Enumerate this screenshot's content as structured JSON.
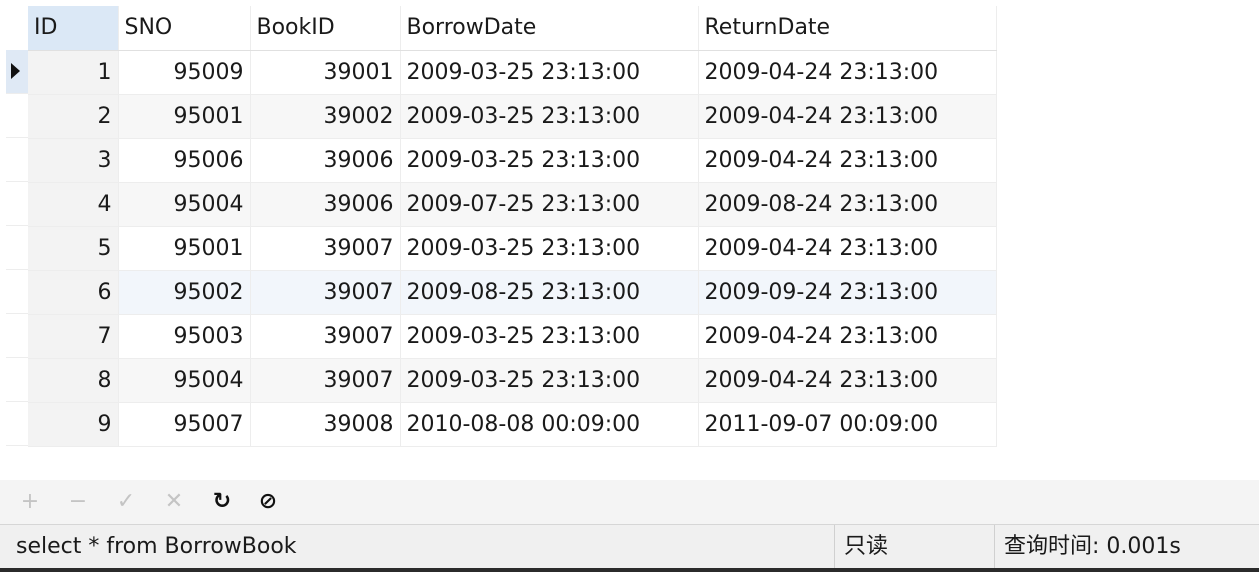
{
  "table": {
    "columns": [
      {
        "key": "id",
        "label": "ID"
      },
      {
        "key": "sno",
        "label": "SNO"
      },
      {
        "key": "bookid",
        "label": "BookID"
      },
      {
        "key": "borrow",
        "label": "BorrowDate"
      },
      {
        "key": "return",
        "label": "ReturnDate"
      }
    ],
    "rows": [
      {
        "id": "1",
        "sno": "95009",
        "bookid": "39001",
        "borrow": "2009-03-25 23:13:00",
        "return": "2009-04-24 23:13:00"
      },
      {
        "id": "2",
        "sno": "95001",
        "bookid": "39002",
        "borrow": "2009-03-25 23:13:00",
        "return": "2009-04-24 23:13:00"
      },
      {
        "id": "3",
        "sno": "95006",
        "bookid": "39006",
        "borrow": "2009-03-25 23:13:00",
        "return": "2009-04-24 23:13:00"
      },
      {
        "id": "4",
        "sno": "95004",
        "bookid": "39006",
        "borrow": "2009-07-25 23:13:00",
        "return": "2009-08-24 23:13:00"
      },
      {
        "id": "5",
        "sno": "95001",
        "bookid": "39007",
        "borrow": "2009-03-25 23:13:00",
        "return": "2009-04-24 23:13:00"
      },
      {
        "id": "6",
        "sno": "95002",
        "bookid": "39007",
        "borrow": "2009-08-25 23:13:00",
        "return": "2009-09-24 23:13:00"
      },
      {
        "id": "7",
        "sno": "95003",
        "bookid": "39007",
        "borrow": "2009-03-25 23:13:00",
        "return": "2009-04-24 23:13:00"
      },
      {
        "id": "8",
        "sno": "95004",
        "bookid": "39007",
        "borrow": "2009-03-25 23:13:00",
        "return": "2009-04-24 23:13:00"
      },
      {
        "id": "9",
        "sno": "95007",
        "bookid": "39008",
        "borrow": "2010-08-08 00:09:00",
        "return": "2011-09-07 00:09:00"
      }
    ]
  },
  "toolbar": {
    "buttons": [
      {
        "name": "add-record-button",
        "icon": "plus-icon",
        "glyph": "+",
        "enabled": false
      },
      {
        "name": "delete-record-button",
        "icon": "minus-icon",
        "glyph": "−",
        "enabled": false
      },
      {
        "name": "apply-changes-button",
        "icon": "check-icon",
        "glyph": "✓",
        "enabled": false
      },
      {
        "name": "discard-changes-button",
        "icon": "cross-icon",
        "glyph": "✕",
        "enabled": false
      },
      {
        "name": "refresh-button",
        "icon": "refresh-icon",
        "glyph": "↻",
        "enabled": true
      },
      {
        "name": "stop-button",
        "icon": "stop-icon",
        "glyph": "⊘",
        "enabled": true
      }
    ]
  },
  "status": {
    "query": "select * from BorrowBook",
    "mode": "只读",
    "timing": "查询时间: 0.001s"
  }
}
